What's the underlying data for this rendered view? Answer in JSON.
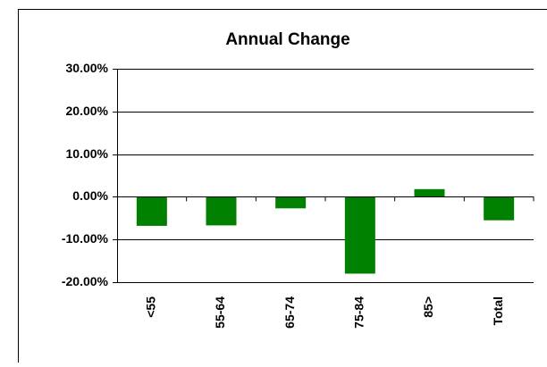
{
  "chart_data": {
    "type": "bar",
    "title": "Annual Change",
    "categories": [
      "<55",
      "55-64",
      "65-74",
      "75-84",
      "85>",
      "Total"
    ],
    "values": [
      -6.8,
      -6.7,
      -2.7,
      -18.0,
      1.8,
      -5.5
    ],
    "color": "#008000",
    "ylim": [
      -20,
      30
    ],
    "yticks": [
      {
        "value": -20,
        "label": "-20.00%"
      },
      {
        "value": -10,
        "label": "-10.00%"
      },
      {
        "value": 0,
        "label": "0.00%"
      },
      {
        "value": 10,
        "label": "10.00%"
      },
      {
        "value": 20,
        "label": "20.00%"
      },
      {
        "value": 30,
        "label": "30.00%"
      }
    ],
    "grid": true
  }
}
